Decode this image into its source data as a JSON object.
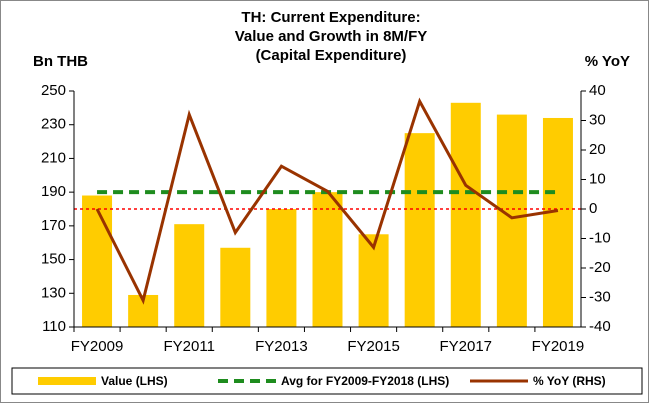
{
  "chart_data": {
    "type": "bar_line",
    "title": [
      "TH: Current Expenditure:",
      "Value and Growth in 8M/FY",
      "(Capital Expenditure)"
    ],
    "y_label": "Bn THB",
    "y2_label": "% YoY",
    "categories": [
      "FY2009",
      null,
      "FY2011",
      null,
      "FY2013",
      null,
      "FY2015",
      null,
      "FY2017",
      null,
      "FY2019"
    ],
    "series": [
      {
        "name": "Value (LHS)",
        "kind": "bar",
        "color": "#ffcc00",
        "values": [
          188,
          129,
          171,
          157,
          180,
          190,
          165,
          225,
          243,
          236,
          234
        ]
      },
      {
        "name": "Avg for FY2009-FY2018 (LHS)",
        "kind": "dashed-line",
        "color": "#1e8c1e",
        "values": [
          190,
          190,
          190,
          190,
          190,
          190,
          190,
          190,
          190,
          190,
          190
        ]
      },
      {
        "name": "% YoY (RHS)",
        "kind": "line",
        "axis": "y2",
        "color": "#993300",
        "values": [
          0,
          -31,
          32,
          -8,
          14.5,
          6,
          -13,
          36.5,
          8,
          -3,
          -0.5
        ]
      }
    ],
    "ylim": [
      110,
      250
    ],
    "yticks": [
      110,
      130,
      150,
      170,
      190,
      210,
      230,
      250
    ],
    "y2lim": [
      -40,
      40
    ],
    "y2ticks": [
      -40,
      -30,
      -20,
      -10,
      0,
      10,
      20,
      30,
      40
    ],
    "y2_reference_line": {
      "value": 0,
      "color": "#ff0000"
    },
    "legend": "bottom"
  }
}
